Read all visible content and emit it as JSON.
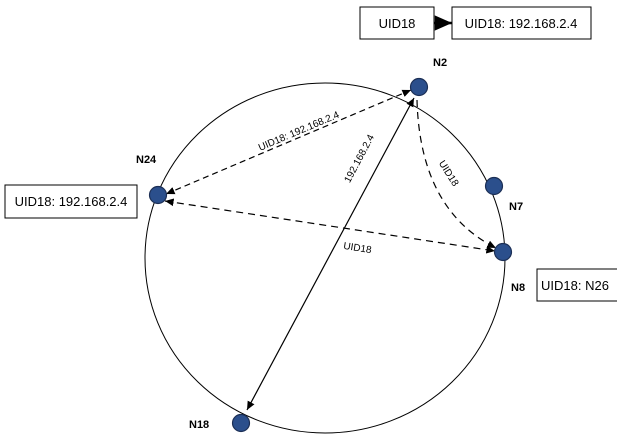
{
  "colors": {
    "node_fill": "#2b4f8c",
    "line": "#000000"
  },
  "nodes": {
    "n2": "N2",
    "n7": "N7",
    "n8": "N8",
    "n18": "N18",
    "n24": "N24"
  },
  "boxes": {
    "query_uid": "UID18",
    "query_result": "UID18: 192.168.2.4",
    "n24_entry": "UID18: 192.168.2.4",
    "n8_entry": "UID18: N26"
  },
  "edges": {
    "n2_n24": "UID18: 192.168.2.4",
    "n2_n18": "192.168.2.4",
    "n2_n8": "UID18",
    "n24_n8": "UID18"
  }
}
